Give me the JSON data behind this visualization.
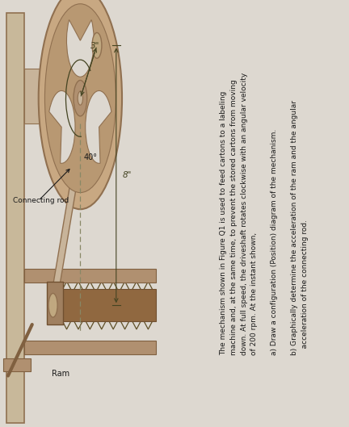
{
  "bg_color": "#ddd8d0",
  "text_bg_color": "#e8e4dc",
  "wall_color": "#c8b49a",
  "gear_color": "#c8a882",
  "gear_outline": "#a08060",
  "text_color": "#1a1a1a",
  "dashed_color": "#888866",
  "annotation_color": "#444422",
  "label_conn": "Connecting rod",
  "label_ram": "Ram",
  "label_3in": "3\"",
  "label_8in": "8\"",
  "label_40deg": "40°",
  "title_text": "The mechanism shown in Figure Q1 is used to feed cartons to a labeling machine and, at the same time, to prevent the stored cartons from moving down. At full speed, the driveshaft rotates clockwise with an angular velocity of 200 rpm. At the instant shown,",
  "part_a": "a) Draw a configuration (Position) diagram of the mechanism.",
  "part_b": "b) Graphically determine the acceleration of the ram and the angular acceleration of the connecting rod."
}
